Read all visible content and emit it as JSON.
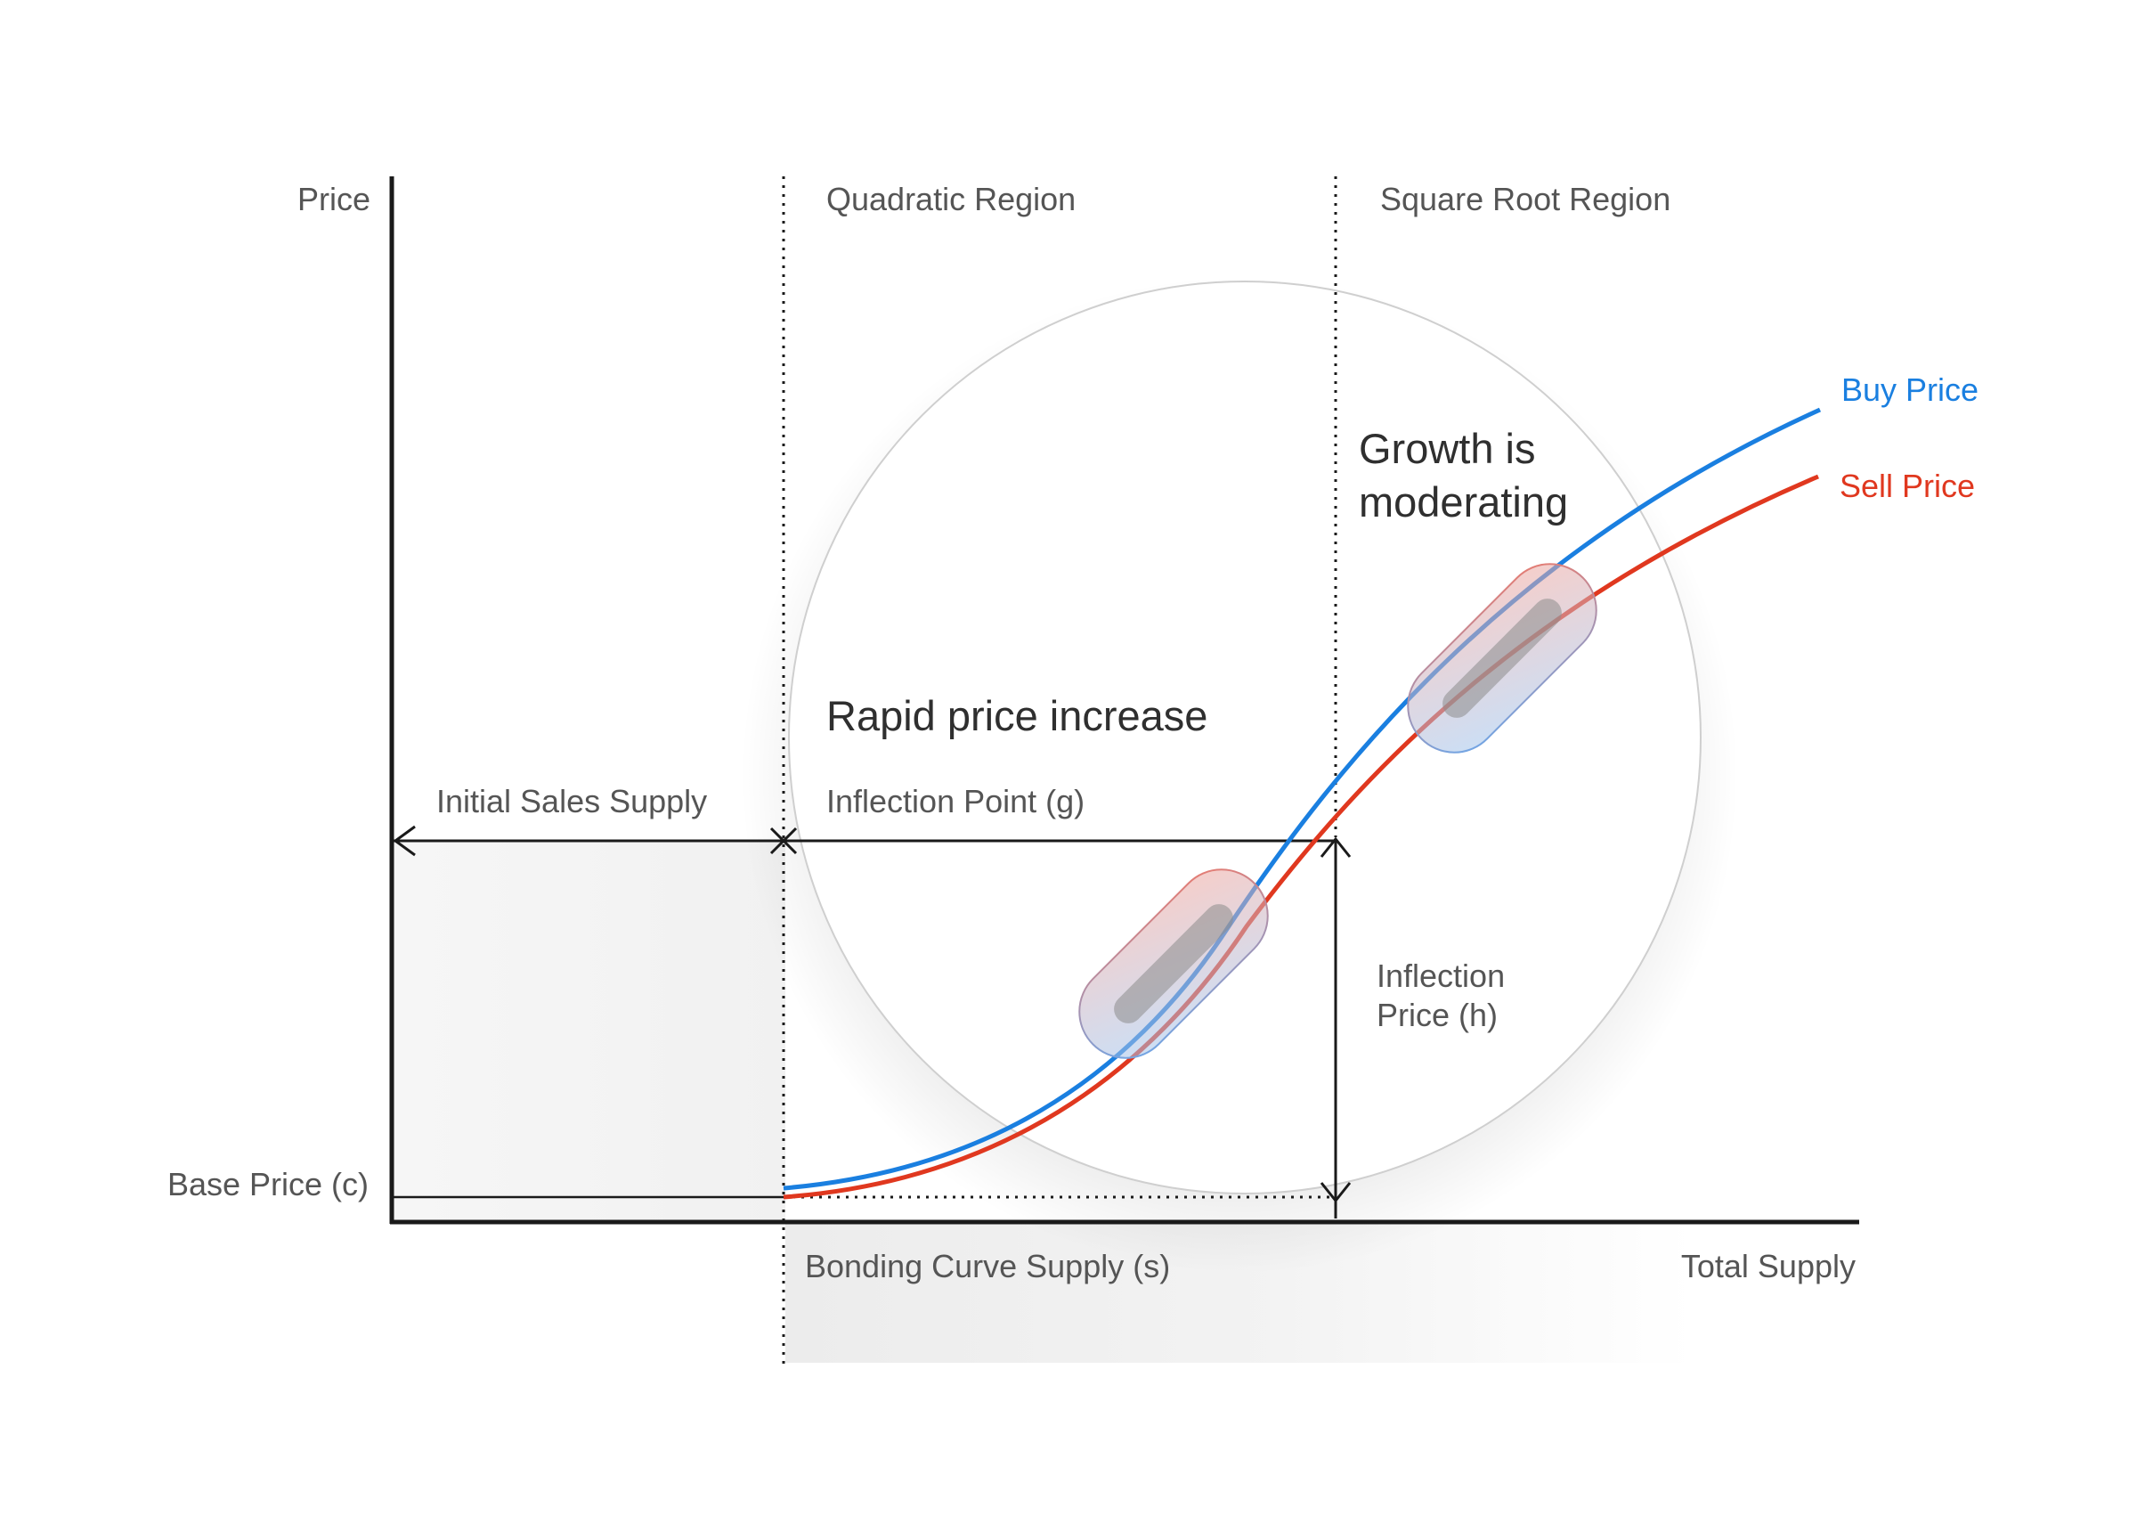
{
  "labels": {
    "y_axis": "Price",
    "x_axis": "Total Supply",
    "quadratic_region": "Quadratic Region",
    "square_root_region": "Square Root Region",
    "initial_sales_supply": "Initial Sales Supply",
    "inflection_point": "Inflection Point (g)",
    "inflection_price_line1": "Inflection",
    "inflection_price_line2": "Price (h)",
    "base_price": "Base Price (c)",
    "bonding_curve_supply": "Bonding Curve Supply (s)",
    "rapid_increase": "Rapid price increase",
    "growth_line1": "Growth is",
    "growth_line2": "moderating"
  },
  "legend": {
    "buy": "Buy Price",
    "sell": "Sell Price"
  },
  "colors": {
    "buy": "#1a7fe0",
    "sell": "#e0381f",
    "axis": "#1a1a1a",
    "text": "#555555"
  }
}
